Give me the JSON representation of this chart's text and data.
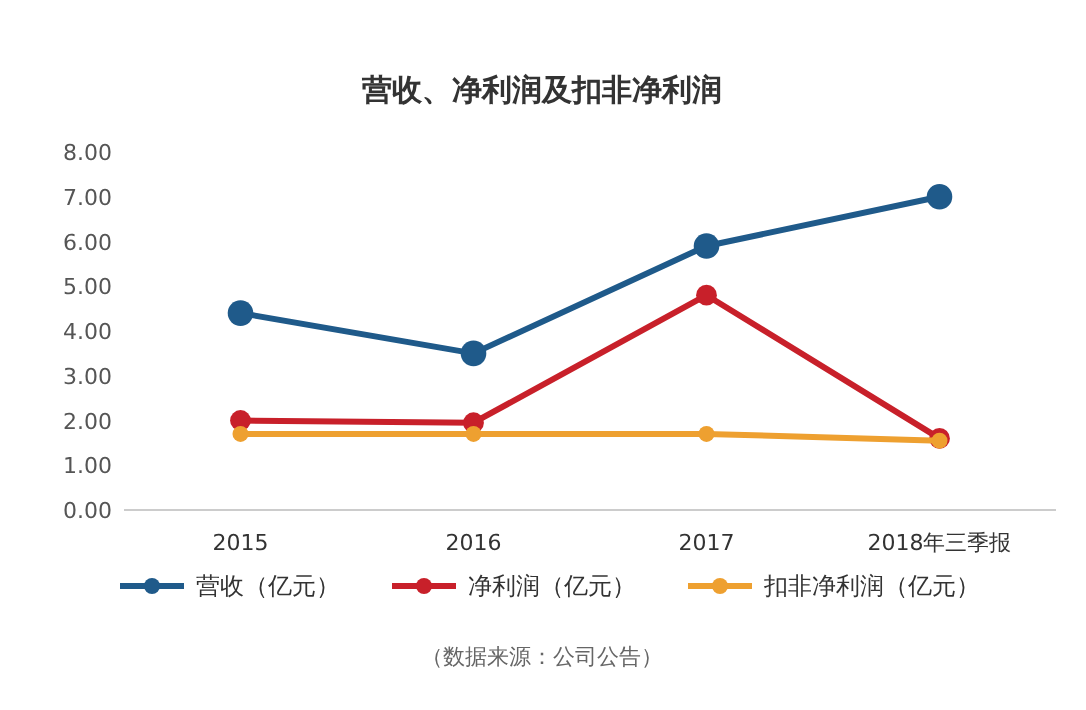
{
  "chart_data": {
    "type": "line",
    "title": "营收、净利润及扣非净利润",
    "categories": [
      "2015",
      "2016",
      "2017",
      "2018年三季报"
    ],
    "series": [
      {
        "name": "营收（亿元）",
        "color": "#1f5a8a",
        "values": [
          4.4,
          3.5,
          5.9,
          7.0
        ]
      },
      {
        "name": "净利润（亿元）",
        "color": "#c8202a",
        "values": [
          2.0,
          1.95,
          4.8,
          1.6
        ]
      },
      {
        "name": "扣非净利润（亿元）",
        "color": "#eea030",
        "values": [
          1.7,
          1.7,
          1.7,
          1.55
        ]
      }
    ],
    "ylim": [
      0,
      8
    ],
    "yticks": [
      {
        "value": 0,
        "label": "0.00"
      },
      {
        "value": 1,
        "label": "1.00"
      },
      {
        "value": 2,
        "label": "2.00"
      },
      {
        "value": 3,
        "label": "3.00"
      },
      {
        "value": 4,
        "label": "4.00"
      },
      {
        "value": 5,
        "label": "5.00"
      },
      {
        "value": 6,
        "label": "6.00"
      },
      {
        "value": 7,
        "label": "7.00"
      },
      {
        "value": 8,
        "label": "8.00"
      }
    ],
    "legend": "bottom",
    "marker": "circle",
    "line_style": "solid",
    "grid": false,
    "annotations": [
      "（数据来源：公司公告）"
    ]
  }
}
